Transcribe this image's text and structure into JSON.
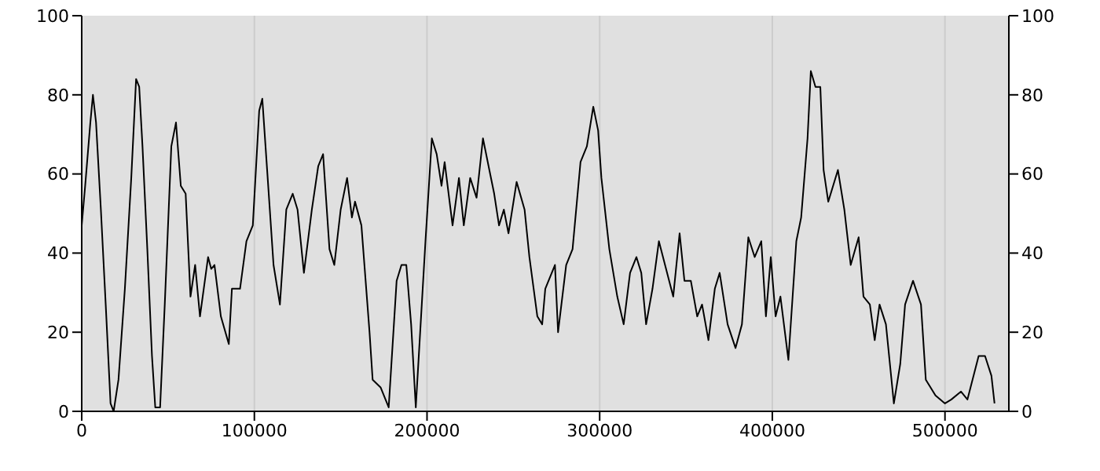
{
  "chart_data": {
    "type": "line",
    "x": [
      0,
      2000,
      5000,
      6500,
      8300,
      11100,
      13900,
      16700,
      18500,
      21300,
      25000,
      28700,
      31500,
      33300,
      35200,
      38000,
      40700,
      42600,
      45400,
      48100,
      51900,
      54600,
      57400,
      60200,
      63000,
      65700,
      68500,
      73200,
      75000,
      76900,
      80600,
      85200,
      87000,
      91700,
      95400,
      99100,
      102800,
      104600,
      107400,
      111100,
      114800,
      118500,
      122200,
      125000,
      128700,
      133300,
      137000,
      139800,
      143500,
      146300,
      150000,
      153700,
      156500,
      158300,
      162000,
      166700,
      168500,
      173200,
      177800,
      182400,
      185200,
      188000,
      190800,
      193500,
      196300,
      199100,
      202800,
      205600,
      208400,
      210200,
      214800,
      218500,
      221300,
      225000,
      228700,
      232400,
      236100,
      238900,
      241700,
      244500,
      247200,
      251900,
      256500,
      259300,
      263900,
      266700,
      268500,
      274100,
      275900,
      280600,
      284300,
      288900,
      292600,
      296300,
      299100,
      301000,
      305600,
      310200,
      313900,
      317600,
      321300,
      324100,
      326900,
      330600,
      334300,
      342600,
      346300,
      349100,
      352800,
      356500,
      359300,
      363000,
      366700,
      369500,
      374100,
      378700,
      382400,
      386100,
      389800,
      393600,
      396300,
      399100,
      401900,
      404700,
      409300,
      413900,
      416700,
      420400,
      422300,
      425000,
      427800,
      429700,
      432400,
      435200,
      438000,
      441700,
      445400,
      450000,
      452800,
      456500,
      459300,
      462100,
      465800,
      470400,
      474100,
      476900,
      481500,
      486100,
      488900,
      494500,
      500000,
      503700,
      509300,
      513000,
      519500,
      523200,
      526900,
      528700
    ],
    "series": [
      {
        "color": "#000000",
        "values": [
          47,
          57,
          73,
          80,
          73,
          51,
          27,
          2,
          0,
          8,
          31,
          59,
          84,
          82,
          67,
          41,
          14,
          1,
          1,
          27,
          67,
          73,
          57,
          55,
          29,
          37,
          24,
          39,
          36,
          37,
          24,
          17,
          31,
          31,
          43,
          47,
          76,
          79,
          61,
          37,
          27,
          51,
          55,
          51,
          35,
          51,
          62,
          65,
          41,
          37,
          51,
          59,
          49,
          53,
          47,
          20,
          8,
          6,
          1,
          33,
          37,
          37,
          22,
          1,
          22,
          43,
          69,
          65,
          57,
          63,
          47,
          59,
          47,
          59,
          54,
          69,
          61,
          55,
          47,
          51,
          45,
          58,
          51,
          39,
          24,
          22,
          31,
          37,
          20,
          37,
          41,
          63,
          67,
          77,
          71,
          59,
          41,
          29,
          22,
          35,
          39,
          35,
          22,
          31,
          43,
          29,
          45,
          33,
          33,
          24,
          27,
          18,
          31,
          35,
          22,
          16,
          22,
          44,
          39,
          43,
          24,
          39,
          24,
          29,
          13,
          43,
          49,
          69,
          86,
          82,
          82,
          61,
          53,
          57,
          61,
          51,
          37,
          44,
          29,
          27,
          18,
          27,
          22,
          2,
          12,
          27,
          33,
          27,
          8,
          4,
          2,
          3,
          5,
          3,
          14,
          14,
          9,
          2
        ]
      }
    ],
    "xlim": [
      0,
      537000
    ],
    "xticks": [
      0,
      100000,
      200000,
      300000,
      400000,
      500000
    ],
    "ylim": [
      0,
      100
    ],
    "yticks": [
      0,
      20,
      40,
      60,
      80,
      100
    ],
    "y2lim": [
      0,
      100
    ],
    "y2ticks": [
      0,
      20,
      40,
      60,
      80,
      100
    ],
    "grid": true,
    "marker": "none",
    "line_style": "solid"
  }
}
